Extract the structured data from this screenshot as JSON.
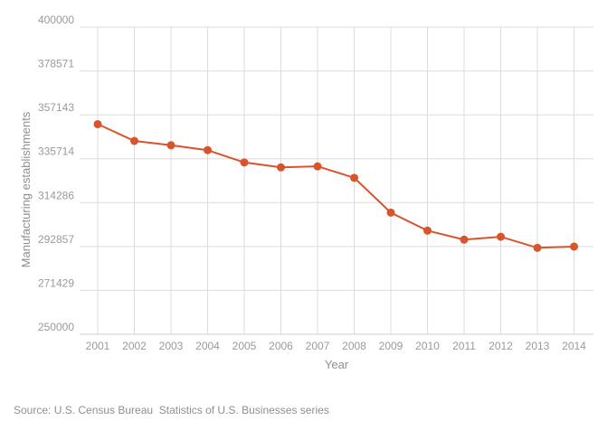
{
  "chart_data": {
    "type": "line",
    "title": "",
    "xlabel": "Year",
    "ylabel": "Manufacturing establishments",
    "x": [
      "2001",
      "2002",
      "2003",
      "2004",
      "2005",
      "2006",
      "2007",
      "2008",
      "2009",
      "2010",
      "2011",
      "2012",
      "2013",
      "2014"
    ],
    "series": [
      {
        "name": "",
        "values": [
          352600,
          344400,
          342300,
          339900,
          333900,
          331500,
          332000,
          326400,
          309400,
          300600,
          296200,
          297600,
          292200,
          292800
        ]
      }
    ],
    "yticks": [
      "400000",
      "378571",
      "357143",
      "335714",
      "314286",
      "292857",
      "271429",
      "250000"
    ],
    "ylim": [
      250000,
      400000
    ],
    "grid": true,
    "legend": "none",
    "colors": {
      "line": "#d9542c",
      "grid": "#dcdcdc",
      "text": "#9a9a9a"
    }
  },
  "source": {
    "text": "Source: U.S. Census Bureau  Statistics of U.S. Businesses series"
  }
}
